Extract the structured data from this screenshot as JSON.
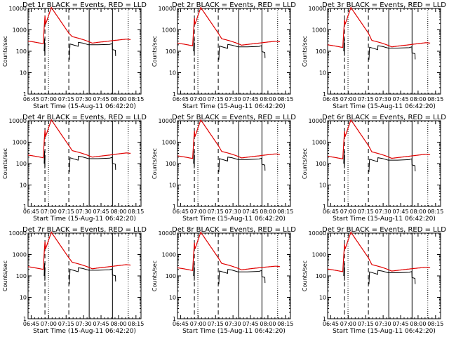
{
  "chart_data": {
    "type": "line",
    "layout": "3x3 grid",
    "x_start_label": "Start Time (15-Aug-11 06:42:20)",
    "x_range_minutes": [
      0,
      97
    ],
    "x_tick_labels": [
      "06:45",
      "07:00",
      "07:15",
      "07:30",
      "07:45",
      "08:00",
      "08:15"
    ],
    "x_tick_minutes": [
      2.67,
      17.67,
      32.67,
      47.67,
      62.67,
      77.67,
      92.67
    ],
    "ylabel": "Counts/sec",
    "yscale": "log",
    "ylim": [
      1,
      10000
    ],
    "y_tick_labels": [
      "1",
      "10",
      "100",
      "1000",
      "10000"
    ],
    "y_tick_values": [
      1,
      10,
      100,
      1000,
      10000
    ],
    "legend_text": "BLACK = Events, RED = LLD",
    "colors": {
      "events": "#000000",
      "lld": "#e00000"
    },
    "vlines": [
      {
        "style": "dashed",
        "minute": 14.5
      },
      {
        "style": "dotted",
        "minute": 17.5
      },
      {
        "style": "dashed",
        "minute": 35
      },
      {
        "style": "solid",
        "minute": 52.5
      },
      {
        "style": "solid",
        "minute": 72.5
      },
      {
        "style": "dotted",
        "minute": 86
      }
    ],
    "panels": [
      {
        "title": "Det 1r BLACK = Events, RED = LLD",
        "lld_base": 300,
        "lld_tail": 350,
        "events_level": 200,
        "peak": 11000
      },
      {
        "title": "Det 2r BLACK = Events, RED = LLD",
        "lld_base": 240,
        "lld_tail": 280,
        "events_level": 160,
        "peak": 11000
      },
      {
        "title": "Det 3r BLACK = Events, RED = LLD",
        "lld_base": 200,
        "lld_tail": 240,
        "events_level": 140,
        "peak": 11000
      },
      {
        "title": "Det 4r BLACK = Events, RED = LLD",
        "lld_base": 250,
        "lld_tail": 300,
        "events_level": 170,
        "peak": 11000
      },
      {
        "title": "Det 5r BLACK = Events, RED = LLD",
        "lld_base": 230,
        "lld_tail": 270,
        "events_level": 155,
        "peak": 11000
      },
      {
        "title": "Det 6r BLACK = Events, RED = LLD",
        "lld_base": 220,
        "lld_tail": 260,
        "events_level": 145,
        "peak": 11000
      },
      {
        "title": "Det 7r BLACK = Events, RED = LLD",
        "lld_base": 270,
        "lld_tail": 320,
        "events_level": 185,
        "peak": 11000
      },
      {
        "title": "Det 8r BLACK = Events, RED = LLD",
        "lld_base": 240,
        "lld_tail": 270,
        "events_level": 155,
        "peak": 11000
      },
      {
        "title": "Det 9r BLACK = Events, RED = LLD",
        "lld_base": 210,
        "lld_tail": 240,
        "events_level": 140,
        "peak": 11000
      }
    ]
  }
}
